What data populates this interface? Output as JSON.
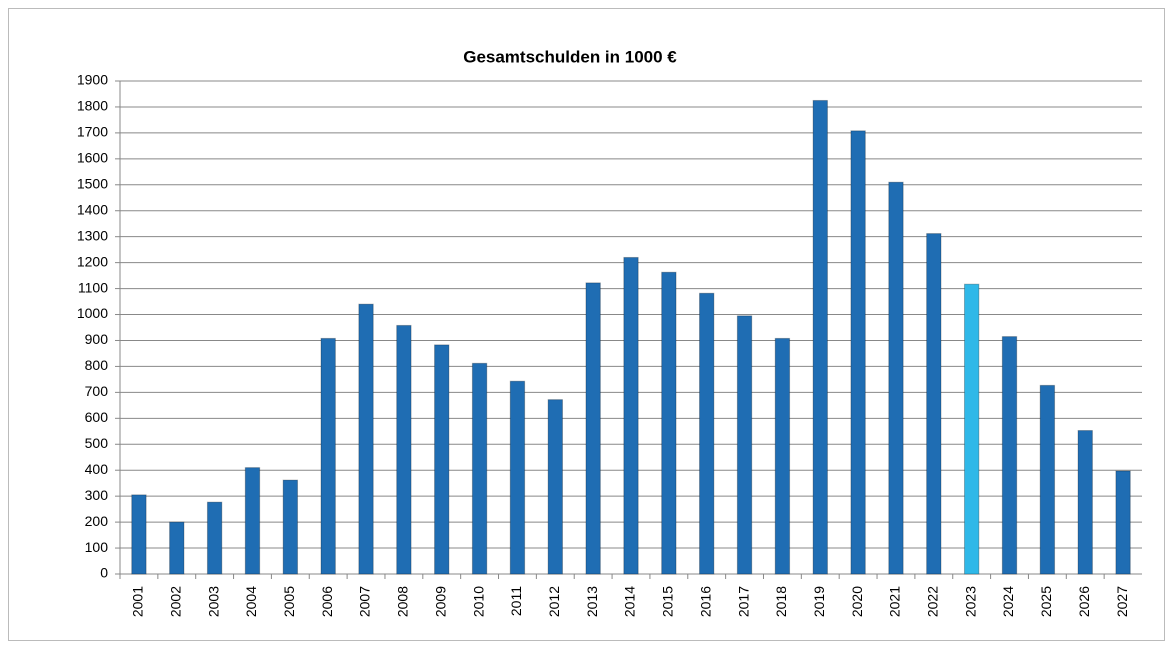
{
  "chart_data": {
    "type": "bar",
    "title": "Gesamtschulden in 1000 €",
    "categories": [
      "2001",
      "2002",
      "2003",
      "2004",
      "2005",
      "2006",
      "2007",
      "2008",
      "2009",
      "2010",
      "2011",
      "2012",
      "2013",
      "2014",
      "2015",
      "2016",
      "2017",
      "2018",
      "2019",
      "2020",
      "2021",
      "2022",
      "2023",
      "2024",
      "2025",
      "2026",
      "2027"
    ],
    "values": [
      305,
      200,
      277,
      410,
      362,
      908,
      1040,
      958,
      883,
      812,
      743,
      672,
      1122,
      1220,
      1163,
      1082,
      995,
      908,
      1825,
      1708,
      1510,
      1312,
      1117,
      915,
      727,
      553,
      397
    ],
    "colors": [
      "#1f6db3",
      "#1f6db3",
      "#1f6db3",
      "#1f6db3",
      "#1f6db3",
      "#1f6db3",
      "#1f6db3",
      "#1f6db3",
      "#1f6db3",
      "#1f6db3",
      "#1f6db3",
      "#1f6db3",
      "#1f6db3",
      "#1f6db3",
      "#1f6db3",
      "#1f6db3",
      "#1f6db3",
      "#1f6db3",
      "#1f6db3",
      "#1f6db3",
      "#1f6db3",
      "#1f6db3",
      "#2fb8e8",
      "#1f6db3",
      "#1f6db3",
      "#1f6db3",
      "#1f6db3"
    ],
    "ylim": [
      0,
      1900
    ],
    "yticks": [
      0,
      100,
      200,
      300,
      400,
      500,
      600,
      700,
      800,
      900,
      1000,
      1100,
      1200,
      1300,
      1400,
      1500,
      1600,
      1700,
      1800,
      1900
    ],
    "grid": true
  }
}
